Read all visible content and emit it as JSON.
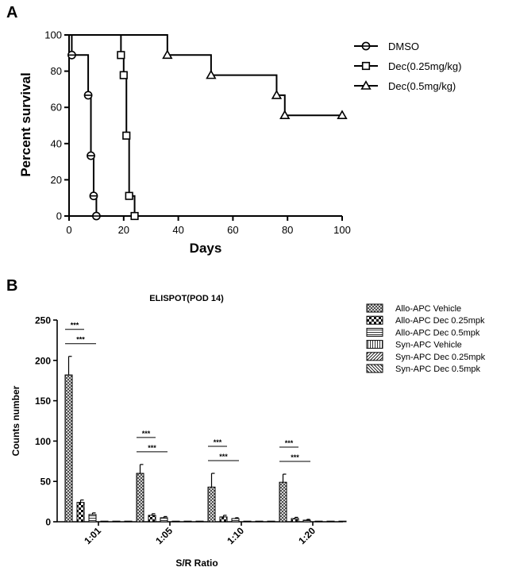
{
  "panel_a_letter": "A",
  "panel_b_letter": "B",
  "chart_data": [
    {
      "type": "line",
      "subtype": "kaplan-meier survival",
      "title": "",
      "xlabel": "Days",
      "ylabel": "Percent survival",
      "xlim": [
        0,
        100
      ],
      "ylim": [
        0,
        100
      ],
      "xticks": [
        0,
        20,
        40,
        60,
        80,
        100
      ],
      "yticks": [
        0,
        20,
        40,
        60,
        80,
        100
      ],
      "grid": false,
      "legend_position": "right",
      "series": [
        {
          "name": "DMSO",
          "marker": "circle",
          "steps": [
            [
              0,
              100
            ],
            [
              1,
              88.9
            ],
            [
              7,
              66.7
            ],
            [
              8,
              33.3
            ],
            [
              9,
              11.1
            ],
            [
              10,
              0
            ]
          ]
        },
        {
          "name": "Dec(0.25mg/kg)",
          "marker": "square",
          "steps": [
            [
              0,
              100
            ],
            [
              19,
              88.9
            ],
            [
              20,
              77.8
            ],
            [
              21,
              44.4
            ],
            [
              22,
              11.1
            ],
            [
              24,
              0
            ]
          ]
        },
        {
          "name": "Dec(0.5mg/kg)",
          "marker": "triangle",
          "steps": [
            [
              0,
              100
            ],
            [
              36,
              88.9
            ],
            [
              52,
              77.8
            ],
            [
              76,
              66.7
            ],
            [
              79,
              55.6
            ],
            [
              100,
              55.6
            ]
          ]
        }
      ]
    },
    {
      "type": "bar",
      "title": "ELISPOT(POD 14)",
      "xlabel": "S/R Ratio",
      "ylabel": "Counts number",
      "ylim": [
        0,
        250
      ],
      "yticks": [
        0,
        50,
        100,
        150,
        200,
        250
      ],
      "grid": false,
      "legend_position": "top-right",
      "categories": [
        "1:01",
        "1:05",
        "1:10",
        "1:20"
      ],
      "series": [
        {
          "name": "Allo-APC Vehicle",
          "pattern": "crosshatch-dense",
          "values": [
            182,
            60,
            43,
            49
          ],
          "errors": [
            23,
            11,
            17,
            10
          ]
        },
        {
          "name": "Allo-APC Dec 0.25mpk",
          "pattern": "checker",
          "values": [
            24,
            8,
            6,
            4
          ],
          "errors": [
            3,
            2,
            2,
            1.5
          ]
        },
        {
          "name": "Allo-APC Dec 0.5mpk",
          "pattern": "horizontal",
          "values": [
            9,
            5,
            4,
            2
          ],
          "errors": [
            2,
            1.5,
            1,
            1
          ]
        },
        {
          "name": "Syn-APC Vehicle",
          "pattern": "vertical",
          "values": [
            0.5,
            0.5,
            0.5,
            0.5
          ],
          "errors": [
            0,
            0,
            0,
            0
          ]
        },
        {
          "name": "Syn-APC Dec 0.25mpk",
          "pattern": "diagonal-up",
          "values": [
            0.5,
            0.5,
            0.5,
            0.5
          ],
          "errors": [
            0,
            0,
            0,
            0
          ]
        },
        {
          "name": "Syn-APC Dec 0.5mpk",
          "pattern": "diagonal-down",
          "values": [
            0.5,
            0.5,
            0.5,
            0.5
          ],
          "errors": [
            0,
            0,
            0,
            0
          ]
        }
      ],
      "annotations": [
        {
          "text": "***",
          "category": "1:01",
          "from_series": 0,
          "to_series": 1,
          "level": 1
        },
        {
          "text": "***",
          "category": "1:01",
          "from_series": 0,
          "to_series": 2,
          "level": 2
        },
        {
          "text": "***",
          "category": "1:05",
          "from_series": 0,
          "to_series": 1,
          "level": 1
        },
        {
          "text": "***",
          "category": "1:05",
          "from_series": 0,
          "to_series": 2,
          "level": 2
        },
        {
          "text": "***",
          "category": "1:10",
          "from_series": 0,
          "to_series": 1,
          "level": 1
        },
        {
          "text": "***",
          "category": "1:10",
          "from_series": 0,
          "to_series": 2,
          "level": 2
        },
        {
          "text": "***",
          "category": "1:20",
          "from_series": 0,
          "to_series": 1,
          "level": 1
        },
        {
          "text": "***",
          "category": "1:20",
          "from_series": 0,
          "to_series": 2,
          "level": 2
        }
      ]
    }
  ]
}
